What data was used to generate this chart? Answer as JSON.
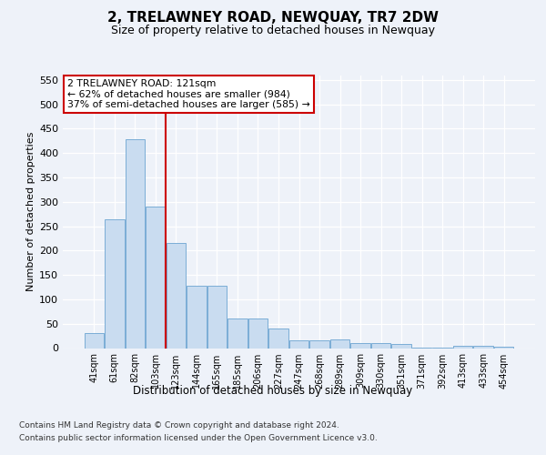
{
  "title": "2, TRELAWNEY ROAD, NEWQUAY, TR7 2DW",
  "subtitle": "Size of property relative to detached houses in Newquay",
  "xlabel": "Distribution of detached houses by size in Newquay",
  "ylabel": "Number of detached properties",
  "categories": [
    "41sqm",
    "61sqm",
    "82sqm",
    "103sqm",
    "123sqm",
    "144sqm",
    "165sqm",
    "185sqm",
    "206sqm",
    "227sqm",
    "247sqm",
    "268sqm",
    "289sqm",
    "309sqm",
    "330sqm",
    "351sqm",
    "371sqm",
    "392sqm",
    "413sqm",
    "433sqm",
    "454sqm"
  ],
  "values": [
    30,
    265,
    428,
    290,
    215,
    128,
    128,
    60,
    60,
    40,
    15,
    15,
    18,
    10,
    10,
    8,
    1,
    1,
    5,
    5,
    3
  ],
  "bar_color": "#c9dcf0",
  "bar_edge_color": "#7aadd6",
  "property_label": "2 TRELAWNEY ROAD: 121sqm",
  "annotation_line1": "← 62% of detached houses are smaller (984)",
  "annotation_line2": "37% of semi-detached houses are larger (585) →",
  "vline_color": "#cc0000",
  "vline_position": 3.5,
  "annotation_box_color": "#ffffff",
  "annotation_box_edge": "#cc0000",
  "ylim": [
    0,
    560
  ],
  "yticks": [
    0,
    50,
    100,
    150,
    200,
    250,
    300,
    350,
    400,
    450,
    500,
    550
  ],
  "footer_line1": "Contains HM Land Registry data © Crown copyright and database right 2024.",
  "footer_line2": "Contains public sector information licensed under the Open Government Licence v3.0.",
  "bg_color": "#eef2f9",
  "plot_bg_color": "#eef2f9"
}
